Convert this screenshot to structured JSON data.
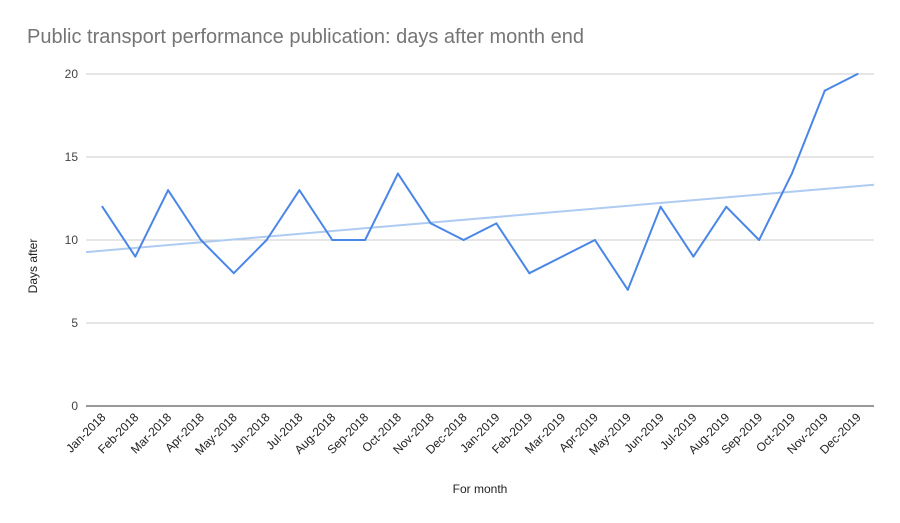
{
  "chart_data": {
    "type": "line",
    "title": "Public transport performance publication: days after month end",
    "xlabel": "For month",
    "ylabel": "Days after",
    "ylim": [
      0,
      20
    ],
    "yticks": [
      0,
      5,
      10,
      15,
      20
    ],
    "grid": true,
    "legend": "none",
    "categories": [
      "Jan-2018",
      "Feb-2018",
      "Mar-2018",
      "Apr-2018",
      "May-2018",
      "Jun-2018",
      "Jul-2018",
      "Aug-2018",
      "Sep-2018",
      "Oct-2018",
      "Nov-2018",
      "Dec-2018",
      "Jan-2019",
      "Feb-2019",
      "Mar-2019",
      "Apr-2019",
      "May-2019",
      "Jun-2019",
      "Jul-2019",
      "Aug-2019",
      "Sep-2019",
      "Oct-2019",
      "Nov-2019",
      "Dec-2019"
    ],
    "series": [
      {
        "values": [
          12,
          9,
          13,
          10,
          8,
          10,
          13,
          10,
          10,
          14,
          11,
          10,
          11,
          8,
          9,
          10,
          7,
          12,
          9,
          12,
          10,
          14,
          19,
          20
        ],
        "color": "#4a86e8"
      }
    ],
    "trendline": {
      "type": "linear",
      "start": 9.27,
      "end": 13.33,
      "color": "#aecbf2"
    }
  }
}
